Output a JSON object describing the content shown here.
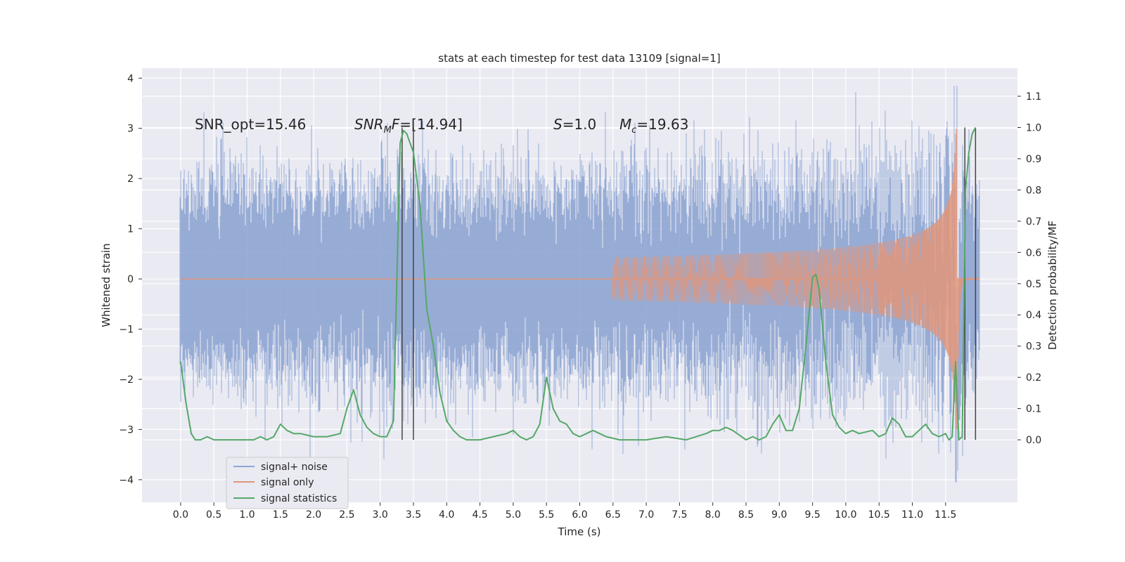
{
  "chart_data": {
    "type": "line",
    "title": "stats at each timestep for test data 13109 [signal=1]",
    "xlabel": "Time (s)",
    "ylabel_left": "Whitened strain",
    "ylabel_right": "Detection probability/MF",
    "xlim": [
      -0.58,
      12.58
    ],
    "ylim_left": [
      -4.45,
      4.2
    ],
    "ylim_right": [
      -0.2,
      1.19
    ],
    "x_ticks": [
      "0.0",
      "0.5",
      "1.0",
      "1.5",
      "2.0",
      "2.5",
      "3.0",
      "3.5",
      "4.0",
      "4.5",
      "5.0",
      "5.5",
      "6.0",
      "6.5",
      "7.0",
      "7.5",
      "8.0",
      "8.5",
      "9.0",
      "9.5",
      "10.0",
      "10.5",
      "11.0",
      "11.5"
    ],
    "y_ticks_left": [
      "4",
      "3",
      "2",
      "1",
      "0",
      "−1",
      "−2",
      "−3",
      "−4"
    ],
    "y_ticks_right": [
      "1.1",
      "1.0",
      "0.9",
      "0.8",
      "0.7",
      "0.6",
      "0.5",
      "0.4",
      "0.3",
      "0.2",
      "0.1",
      "0.0"
    ],
    "grid": true,
    "legend_placement": "lower-left",
    "colors": {
      "noise": "#8ea5d1",
      "signal": "#e0957a",
      "stats": "#55a868",
      "vlines": "#444444",
      "background": "#eaeaf2",
      "grid": "#ffffff"
    },
    "annotations": {
      "snr_opt": "SNR_opt=15.46",
      "snr_mf_label": "SNR",
      "snr_mf_sub": "M",
      "snr_mf_label2": "F",
      "snr_mf_value": "=[14.94]",
      "s_label": "S",
      "s_value": "=1.0",
      "mc_label": "M",
      "mc_sub": "c",
      "mc_value": "=19.63"
    },
    "series": [
      {
        "name": "signal+ noise",
        "axis": "left",
        "duration": 12.0,
        "std": 1.0,
        "min": -4.05,
        "max": 3.85
      },
      {
        "name": "signal only",
        "axis": "left",
        "chirp_start": 6.5,
        "merger_time": 11.68,
        "peak_amplitude": 3.0
      },
      {
        "name": "signal statistics",
        "axis": "right",
        "x": [
          0.0,
          0.08,
          0.16,
          0.22,
          0.3,
          0.4,
          0.5,
          0.6,
          0.8,
          1.0,
          1.1,
          1.2,
          1.3,
          1.4,
          1.5,
          1.6,
          1.7,
          1.8,
          2.0,
          2.2,
          2.4,
          2.5,
          2.6,
          2.7,
          2.8,
          2.9,
          3.0,
          3.1,
          3.2,
          3.3,
          3.35,
          3.4,
          3.5,
          3.6,
          3.7,
          3.8,
          3.9,
          4.0,
          4.1,
          4.2,
          4.3,
          4.4,
          4.5,
          4.7,
          4.9,
          5.0,
          5.1,
          5.2,
          5.3,
          5.4,
          5.5,
          5.6,
          5.7,
          5.8,
          5.9,
          6.0,
          6.1,
          6.2,
          6.3,
          6.4,
          6.6,
          6.8,
          7.0,
          7.3,
          7.6,
          7.9,
          8.0,
          8.1,
          8.2,
          8.3,
          8.5,
          8.6,
          8.7,
          8.8,
          8.9,
          9.0,
          9.1,
          9.2,
          9.3,
          9.4,
          9.5,
          9.55,
          9.6,
          9.7,
          9.8,
          9.9,
          10.0,
          10.1,
          10.2,
          10.4,
          10.5,
          10.6,
          10.7,
          10.8,
          10.9,
          11.0,
          11.1,
          11.2,
          11.3,
          11.4,
          11.5,
          11.55,
          11.6,
          11.65,
          11.7,
          11.75,
          11.8,
          11.85,
          11.9,
          11.95
        ],
        "values": [
          0.25,
          0.12,
          0.02,
          0.0,
          0.0,
          0.01,
          0.0,
          0.0,
          0.0,
          0.0,
          0.0,
          0.01,
          0.0,
          0.01,
          0.05,
          0.03,
          0.02,
          0.02,
          0.01,
          0.01,
          0.02,
          0.1,
          0.16,
          0.08,
          0.04,
          0.02,
          0.01,
          0.01,
          0.06,
          0.95,
          0.99,
          0.98,
          0.92,
          0.75,
          0.42,
          0.3,
          0.15,
          0.06,
          0.03,
          0.01,
          0.0,
          0.0,
          0.0,
          0.01,
          0.02,
          0.03,
          0.01,
          0.0,
          0.01,
          0.05,
          0.2,
          0.1,
          0.06,
          0.05,
          0.02,
          0.01,
          0.02,
          0.03,
          0.02,
          0.01,
          0.0,
          0.0,
          0.0,
          0.01,
          0.0,
          0.02,
          0.03,
          0.03,
          0.04,
          0.03,
          0.0,
          0.01,
          0.0,
          0.01,
          0.05,
          0.08,
          0.03,
          0.03,
          0.1,
          0.3,
          0.52,
          0.53,
          0.48,
          0.25,
          0.08,
          0.04,
          0.02,
          0.03,
          0.02,
          0.03,
          0.01,
          0.02,
          0.07,
          0.05,
          0.01,
          0.01,
          0.03,
          0.05,
          0.02,
          0.01,
          0.02,
          0.0,
          0.01,
          0.25,
          0.0,
          0.01,
          0.8,
          0.92,
          0.98,
          1.0
        ]
      }
    ],
    "vlines": [
      3.33,
      3.5,
      11.79,
      11.95
    ],
    "legend": [
      "signal+ noise",
      "signal only",
      "signal statistics"
    ]
  }
}
